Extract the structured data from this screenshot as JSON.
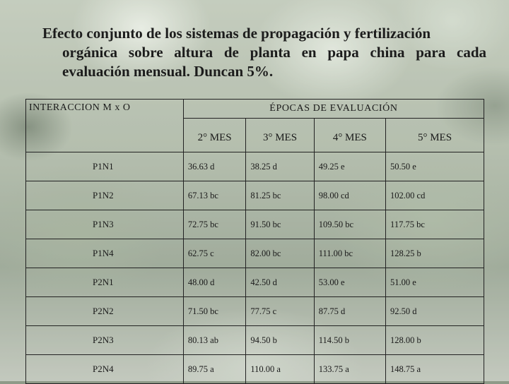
{
  "title_lines": [
    "Efecto conjunto de los sistemas de propagación y fertilización",
    "orgánica sobre altura de planta en papa china para cada",
    "evaluación mensual. Duncan 5%."
  ],
  "table": {
    "corner_header": "INTERACCION M x O",
    "group_header": "ÉPOCAS DE EVALUACIÓN",
    "columns": [
      "2° MES",
      "3° MES",
      "4° MES",
      "5° MES"
    ],
    "rows": [
      {
        "label": "P1N1",
        "values": [
          "36.63 d",
          "38.25 d",
          "49.25 e",
          "50.50 e"
        ]
      },
      {
        "label": "P1N2",
        "values": [
          "67.13 bc",
          "81.25 bc",
          "98.00 cd",
          "102.00 cd"
        ]
      },
      {
        "label": "P1N3",
        "values": [
          "72.75 bc",
          "91.50 bc",
          "109.50 bc",
          "117.75 bc"
        ]
      },
      {
        "label": "P1N4",
        "values": [
          "62.75 c",
          "82.00 bc",
          "111.00 bc",
          "128.25 b"
        ]
      },
      {
        "label": "P2N1",
        "values": [
          "48.00 d",
          "42.50 d",
          "53.00 e",
          "51.00 e"
        ]
      },
      {
        "label": "P2N2",
        "values": [
          "71.50 bc",
          "77.75 c",
          "87.75 d",
          "92.50 d"
        ]
      },
      {
        "label": "P2N3",
        "values": [
          "80.13 ab",
          "94.50 b",
          "114.50 b",
          "128.00 b"
        ]
      },
      {
        "label": "P2N4",
        "values": [
          "89.75 a",
          "110.00 a",
          "133.75 a",
          "148.75 a"
        ]
      }
    ]
  }
}
